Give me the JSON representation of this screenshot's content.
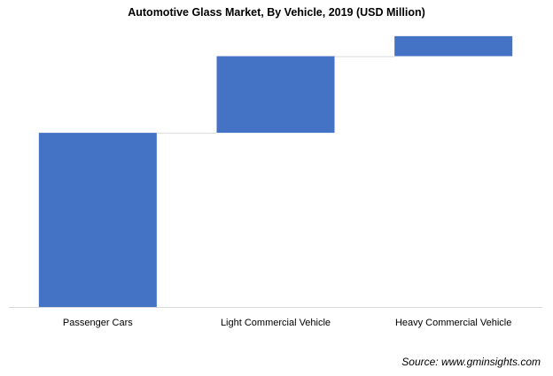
{
  "chart_data": {
    "type": "waterfall",
    "title": "Automotive Glass Market, By Vehicle, 2019 (USD Million)",
    "categories": [
      "Passenger Cars",
      "Light Commercial Vehicle",
      "Heavy Commercial Vehicle"
    ],
    "values": [
      100,
      44,
      11.5
    ],
    "cumulative_end": [
      100,
      144,
      155.5
    ],
    "xlabel": "",
    "ylabel": "",
    "ylim": [
      0,
      160
    ],
    "grid": false,
    "legend": "none",
    "bar_color": "#4472C4",
    "connector_color": "#D9D9D9",
    "axis_color": "#D9D9D9"
  },
  "source_text": "Source: www.gminsights.com"
}
